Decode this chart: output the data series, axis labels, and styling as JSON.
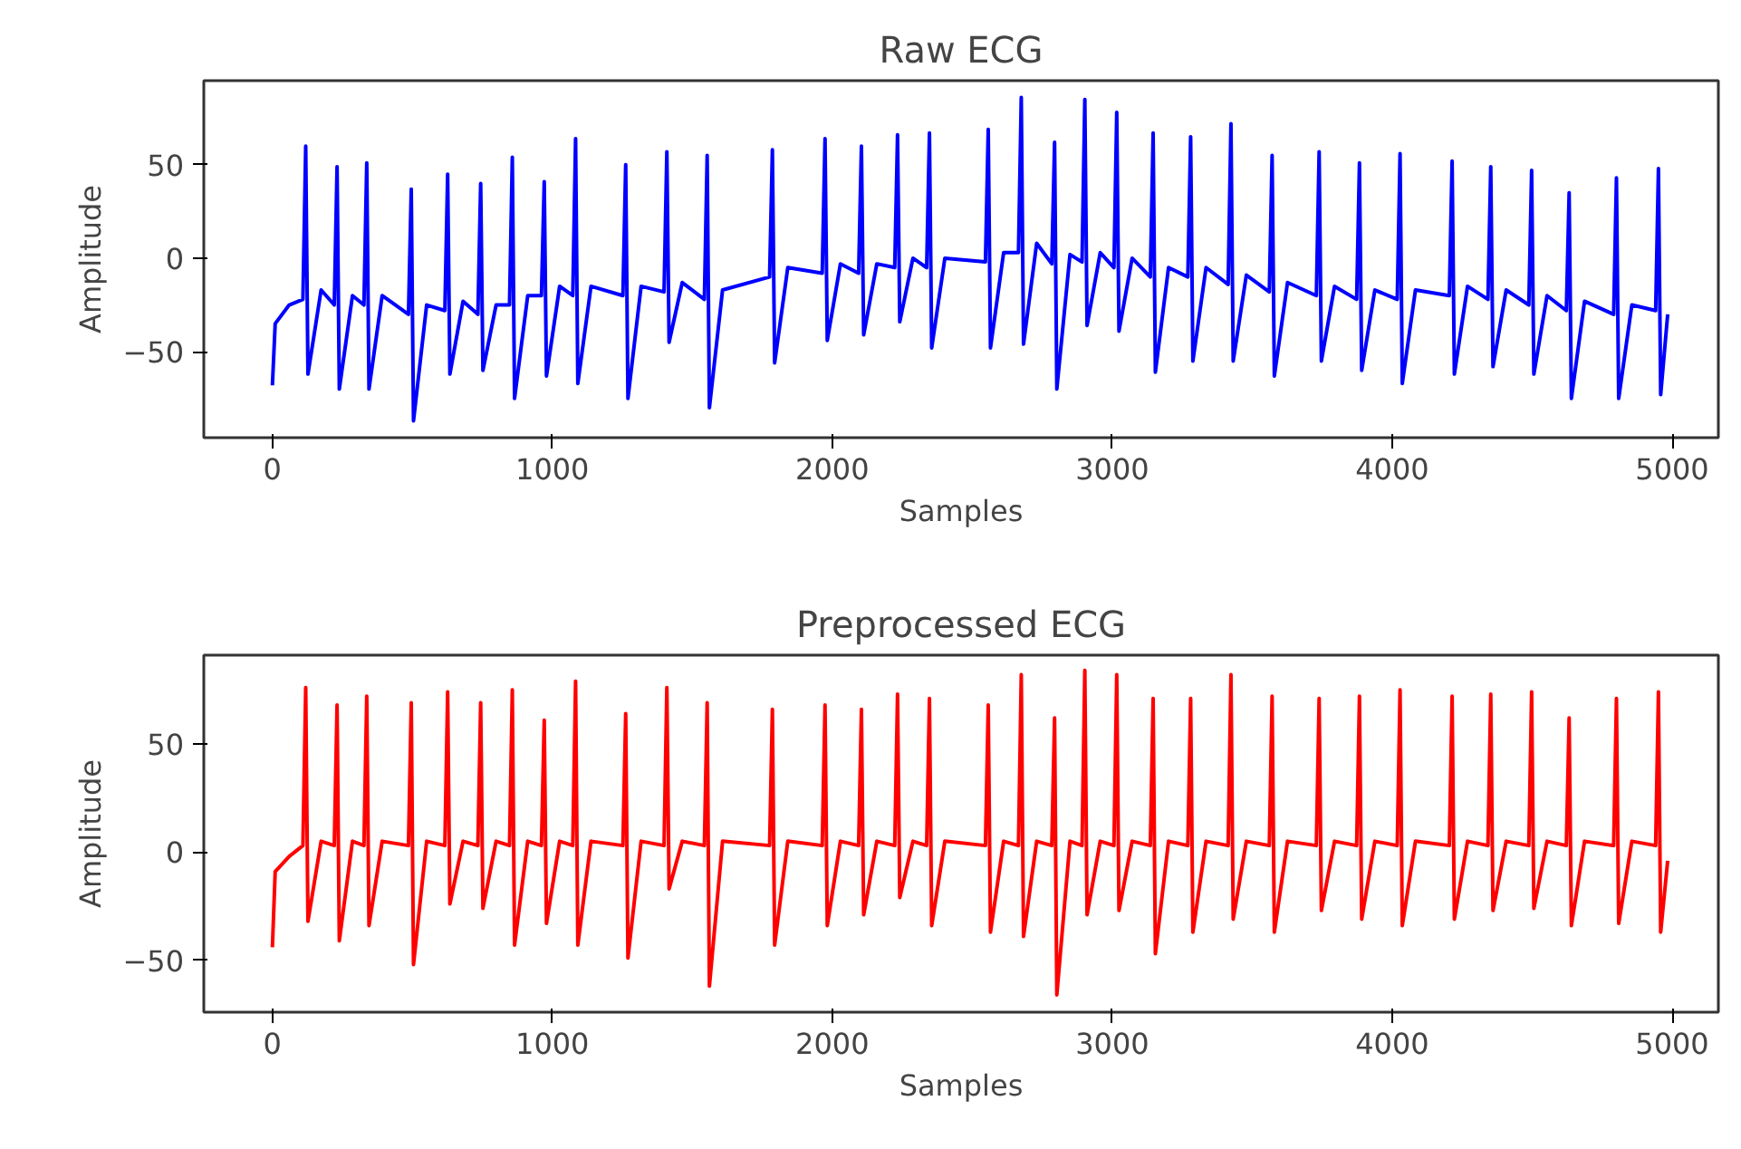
{
  "chart_data": [
    {
      "type": "line",
      "title": "Raw ECG",
      "xlabel": "Samples",
      "ylabel": "Amplitude",
      "grid": false,
      "xlim": [
        -245,
        5165
      ],
      "ylim": [
        -96,
        95
      ],
      "xticks": [
        0,
        1000,
        2000,
        3000,
        4000,
        5000
      ],
      "yticks": [
        -50,
        0,
        50
      ],
      "x": [
        0,
        10,
        60,
        109,
        119,
        127,
        174,
        221,
        231,
        239,
        286,
        327,
        337,
        345,
        392,
        486,
        496,
        504,
        551,
        616,
        626,
        634,
        681,
        734,
        744,
        752,
        799,
        847,
        857,
        865,
        912,
        961,
        971,
        979,
        1026,
        1073,
        1083,
        1091,
        1138,
        1252,
        1262,
        1270,
        1317,
        1399,
        1409,
        1417,
        1464,
        1543,
        1553,
        1561,
        1608,
        1776,
        1786,
        1794,
        1841,
        1964,
        1974,
        1982,
        2029,
        2094,
        2104,
        2112,
        2159,
        2223,
        2233,
        2241,
        2288,
        2337,
        2347,
        2355,
        2402,
        2547,
        2557,
        2565,
        2612,
        2665,
        2675,
        2683,
        2730,
        2784,
        2794,
        2802,
        2849,
        2892,
        2902,
        2910,
        2957,
        3006,
        3016,
        3024,
        3071,
        3136,
        3146,
        3154,
        3201,
        3270,
        3280,
        3288,
        3335,
        3414,
        3424,
        3432,
        3479,
        3561,
        3571,
        3579,
        3626,
        3729,
        3739,
        3747,
        3794,
        3873,
        3883,
        3891,
        3938,
        4018,
        4028,
        4036,
        4083,
        4204,
        4214,
        4222,
        4269,
        4342,
        4352,
        4360,
        4407,
        4488,
        4498,
        4506,
        4553,
        4622,
        4632,
        4640,
        4687,
        4791,
        4801,
        4809,
        4856,
        4941,
        4951,
        4959,
        4984
      ],
      "series": [
        {
          "color": "#0000ff",
          "values": [
            -68,
            -35,
            -25,
            -22,
            60,
            -62,
            -17,
            -25,
            49,
            -70,
            -20,
            -25,
            51,
            -70,
            -20,
            -30,
            37,
            -87,
            -25,
            -28,
            45,
            -62,
            -23,
            -30,
            40,
            -60,
            -25,
            -25,
            54,
            -75,
            -20,
            -20,
            41,
            -63,
            -15,
            -20,
            64,
            -67,
            -15,
            -20,
            50,
            -75,
            -15,
            -18,
            57,
            -45,
            -13,
            -22,
            55,
            -80,
            -17,
            -10,
            58,
            -56,
            -5,
            -8,
            64,
            -44,
            -3,
            -8,
            60,
            -41,
            -3,
            -5,
            66,
            -34,
            0,
            -5,
            67,
            -48,
            0,
            -2,
            69,
            -48,
            3,
            3,
            86,
            -46,
            8,
            -3,
            62,
            -70,
            2,
            -2,
            85,
            -36,
            3,
            -5,
            78,
            -39,
            0,
            -10,
            67,
            -61,
            -5,
            -10,
            65,
            -55,
            -5,
            -14,
            72,
            -55,
            -9,
            -18,
            55,
            -63,
            -13,
            -20,
            57,
            -55,
            -15,
            -22,
            51,
            -60,
            -17,
            -22,
            56,
            -67,
            -17,
            -20,
            52,
            -62,
            -15,
            -22,
            49,
            -58,
            -17,
            -25,
            47,
            -62,
            -20,
            -28,
            35,
            -75,
            -23,
            -30,
            43,
            -75,
            -25,
            -28,
            48,
            -73,
            -30
          ]
        }
      ]
    },
    {
      "type": "line",
      "title": "Preprocessed ECG",
      "xlabel": "Samples",
      "ylabel": "Amplitude",
      "grid": false,
      "xlim": [
        -245,
        5165
      ],
      "ylim": [
        -74,
        91
      ],
      "xticks": [
        0,
        1000,
        2000,
        3000,
        4000,
        5000
      ],
      "yticks": [
        -50,
        0,
        50
      ],
      "x": [
        0,
        10,
        60,
        109,
        119,
        127,
        174,
        221,
        231,
        239,
        286,
        327,
        337,
        345,
        392,
        486,
        496,
        504,
        551,
        616,
        626,
        634,
        681,
        734,
        744,
        752,
        799,
        847,
        857,
        865,
        912,
        961,
        971,
        979,
        1026,
        1073,
        1083,
        1091,
        1138,
        1252,
        1262,
        1270,
        1317,
        1399,
        1409,
        1417,
        1464,
        1543,
        1553,
        1561,
        1608,
        1776,
        1786,
        1794,
        1841,
        1964,
        1974,
        1982,
        2029,
        2094,
        2104,
        2112,
        2159,
        2223,
        2233,
        2241,
        2288,
        2337,
        2347,
        2355,
        2402,
        2547,
        2557,
        2565,
        2612,
        2665,
        2675,
        2683,
        2730,
        2784,
        2794,
        2802,
        2849,
        2892,
        2902,
        2910,
        2957,
        3006,
        3016,
        3024,
        3071,
        3136,
        3146,
        3154,
        3201,
        3270,
        3280,
        3288,
        3335,
        3414,
        3424,
        3432,
        3479,
        3561,
        3571,
        3579,
        3626,
        3729,
        3739,
        3747,
        3794,
        3873,
        3883,
        3891,
        3938,
        4018,
        4028,
        4036,
        4083,
        4204,
        4214,
        4222,
        4269,
        4342,
        4352,
        4360,
        4407,
        4488,
        4498,
        4506,
        4553,
        4622,
        4632,
        4640,
        4687,
        4791,
        4801,
        4809,
        4856,
        4941,
        4951,
        4959,
        4984
      ],
      "series": [
        {
          "color": "#ff0000",
          "values": [
            -44,
            -9,
            -2,
            3,
            76,
            -32,
            5,
            3,
            68,
            -41,
            5,
            3,
            72,
            -34,
            5,
            3,
            69,
            -52,
            5,
            3,
            74,
            -24,
            5,
            3,
            69,
            -26,
            5,
            3,
            75,
            -43,
            5,
            3,
            61,
            -33,
            5,
            3,
            79,
            -43,
            5,
            3,
            64,
            -49,
            5,
            3,
            76,
            -17,
            5,
            3,
            69,
            -62,
            5,
            3,
            66,
            -43,
            5,
            3,
            68,
            -34,
            5,
            3,
            66,
            -29,
            5,
            3,
            73,
            -21,
            5,
            3,
            71,
            -34,
            5,
            3,
            68,
            -37,
            5,
            3,
            82,
            -39,
            5,
            3,
            62,
            -66,
            5,
            3,
            84,
            -29,
            5,
            3,
            82,
            -27,
            5,
            3,
            71,
            -47,
            5,
            3,
            71,
            -37,
            5,
            3,
            82,
            -31,
            5,
            3,
            72,
            -37,
            5,
            3,
            71,
            -27,
            5,
            3,
            72,
            -31,
            5,
            3,
            75,
            -34,
            5,
            3,
            72,
            -31,
            5,
            3,
            73,
            -27,
            5,
            3,
            74,
            -26,
            5,
            3,
            62,
            -34,
            5,
            3,
            71,
            -33,
            5,
            3,
            74,
            -37,
            -4
          ]
        }
      ]
    }
  ]
}
